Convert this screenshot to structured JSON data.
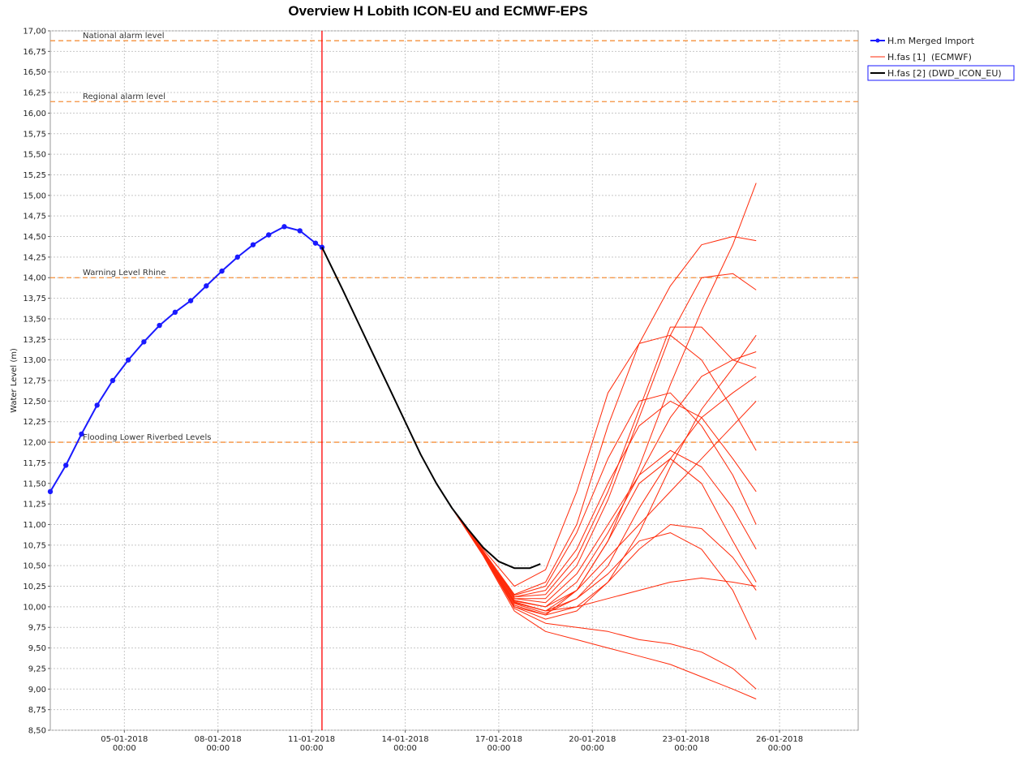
{
  "chart_data": {
    "type": "line",
    "title": "Overview H Lobith ICON-EU and ECMWF-EPS",
    "ylabel": "Water Level (m)",
    "xlim": [
      "2018-01-02T15:00",
      "2018-01-28T12:30"
    ],
    "ylim": [
      8.5,
      17.0
    ],
    "grid": true,
    "legend": "right",
    "xticks": [
      {
        "value": "2018-01-05T00:00",
        "label": "05-01-2018\n00:00"
      },
      {
        "value": "2018-01-08T00:00",
        "label": "08-01-2018\n00:00"
      },
      {
        "value": "2018-01-11T00:00",
        "label": "11-01-2018\n00:00"
      },
      {
        "value": "2018-01-14T00:00",
        "label": "14-01-2018\n00:00"
      },
      {
        "value": "2018-01-17T00:00",
        "label": "17-01-2018\n00:00"
      },
      {
        "value": "2018-01-20T00:00",
        "label": "20-01-2018\n00:00"
      },
      {
        "value": "2018-01-23T00:00",
        "label": "23-01-2018\n00:00"
      },
      {
        "value": "2018-01-26T00:00",
        "label": "26-01-2018\n00:00"
      }
    ],
    "yticks": [
      {
        "value": 8.5,
        "label": "8,50"
      },
      {
        "value": 8.75,
        "label": "8,75"
      },
      {
        "value": 9.0,
        "label": "9,00"
      },
      {
        "value": 9.25,
        "label": "9,25"
      },
      {
        "value": 9.5,
        "label": "9,50"
      },
      {
        "value": 9.75,
        "label": "9,75"
      },
      {
        "value": 10.0,
        "label": "10,00"
      },
      {
        "value": 10.25,
        "label": "10,25"
      },
      {
        "value": 10.5,
        "label": "10,50"
      },
      {
        "value": 10.75,
        "label": "10,75"
      },
      {
        "value": 11.0,
        "label": "11,00"
      },
      {
        "value": 11.25,
        "label": "11,25"
      },
      {
        "value": 11.5,
        "label": "11,50"
      },
      {
        "value": 11.75,
        "label": "11,75"
      },
      {
        "value": 12.0,
        "label": "12,00"
      },
      {
        "value": 12.25,
        "label": "12,25"
      },
      {
        "value": 12.5,
        "label": "12,50"
      },
      {
        "value": 12.75,
        "label": "12,75"
      },
      {
        "value": 13.0,
        "label": "13,00"
      },
      {
        "value": 13.25,
        "label": "13,25"
      },
      {
        "value": 13.5,
        "label": "13,50"
      },
      {
        "value": 13.75,
        "label": "13,75"
      },
      {
        "value": 14.0,
        "label": "14,00"
      },
      {
        "value": 14.25,
        "label": "14,25"
      },
      {
        "value": 14.5,
        "label": "14,50"
      },
      {
        "value": 14.75,
        "label": "14,75"
      },
      {
        "value": 15.0,
        "label": "15,00"
      },
      {
        "value": 15.25,
        "label": "15,25"
      },
      {
        "value": 15.5,
        "label": "15,50"
      },
      {
        "value": 15.75,
        "label": "15,75"
      },
      {
        "value": 16.0,
        "label": "16,00"
      },
      {
        "value": 16.25,
        "label": "16,25"
      },
      {
        "value": 16.5,
        "label": "16,50"
      },
      {
        "value": 16.75,
        "label": "16,75"
      },
      {
        "value": 17.0,
        "label": "17,00"
      }
    ],
    "reference_lines": [
      {
        "label": "National alarm level",
        "value": 16.88,
        "color": "#f5913c"
      },
      {
        "label": "Regional alarm level",
        "value": 16.14,
        "color": "#f5913c"
      },
      {
        "label": "Warning Level Rhine",
        "value": 14.0,
        "color": "#f5913c"
      },
      {
        "label": "Flooding Lower Riverbed Levels",
        "value": 12.0,
        "color": "#f5913c"
      }
    ],
    "time_zero": {
      "value": "2018-01-11T08:00",
      "color": "#ff0000"
    },
    "series": [
      {
        "name": "H.m Merged Import",
        "color": "#1a1aff",
        "markers": true,
        "x": [
          "2018-01-02T15:00",
          "2018-01-03T03:00",
          "2018-01-03T15:00",
          "2018-01-04T03:00",
          "2018-01-04T15:00",
          "2018-01-05T03:00",
          "2018-01-05T15:00",
          "2018-01-06T03:00",
          "2018-01-06T15:00",
          "2018-01-07T03:00",
          "2018-01-07T15:00",
          "2018-01-08T03:00",
          "2018-01-08T15:00",
          "2018-01-09T03:00",
          "2018-01-09T15:00",
          "2018-01-10T03:00",
          "2018-01-10T15:00",
          "2018-01-11T03:00",
          "2018-01-11T08:00"
        ],
        "values": [
          11.4,
          11.72,
          12.1,
          12.45,
          12.75,
          13.0,
          13.22,
          13.42,
          13.58,
          13.72,
          13.9,
          14.08,
          14.25,
          14.4,
          14.52,
          14.62,
          14.57,
          14.42,
          14.37
        ]
      },
      {
        "name": "H.fas [1]  (ECMWF)",
        "color": "#ff2a0a",
        "x": [
          "2018-01-15T12:00",
          "2018-01-16T12:00",
          "2018-01-17T12:00",
          "2018-01-18T12:00",
          "2018-01-19T12:00",
          "2018-01-20T12:00",
          "2018-01-21T12:00",
          "2018-01-22T12:00",
          "2018-01-23T12:00",
          "2018-01-24T12:00",
          "2018-01-25T06:00"
        ],
        "members": [
          [
            11.2,
            10.7,
            10.25,
            10.45,
            11.4,
            12.6,
            13.2,
            13.3,
            13.0,
            12.4,
            11.9
          ],
          [
            11.2,
            10.68,
            10.15,
            10.3,
            11.0,
            12.2,
            13.2,
            13.9,
            14.4,
            14.5,
            14.45
          ],
          [
            11.2,
            10.66,
            10.1,
            10.1,
            10.5,
            11.3,
            12.3,
            13.3,
            14.0,
            14.05,
            13.85
          ],
          [
            11.2,
            10.65,
            10.05,
            9.95,
            10.2,
            10.8,
            11.7,
            12.7,
            13.6,
            14.4,
            15.15
          ],
          [
            11.2,
            10.64,
            10.0,
            9.85,
            9.95,
            10.3,
            10.9,
            11.7,
            12.4,
            12.9,
            13.3
          ],
          [
            11.2,
            10.62,
            9.95,
            9.7,
            9.6,
            9.5,
            9.4,
            9.3,
            9.15,
            9.0,
            8.88
          ],
          [
            11.2,
            10.63,
            9.98,
            9.8,
            9.75,
            9.7,
            9.6,
            9.55,
            9.45,
            9.25,
            9.0
          ],
          [
            11.2,
            10.64,
            10.05,
            9.95,
            10.0,
            10.1,
            10.2,
            10.3,
            10.35,
            10.3,
            10.25
          ],
          [
            11.2,
            10.66,
            10.1,
            10.05,
            10.4,
            11.0,
            11.6,
            11.9,
            11.7,
            11.2,
            10.7
          ],
          [
            11.2,
            10.67,
            10.12,
            10.2,
            10.7,
            11.5,
            12.2,
            12.5,
            12.3,
            11.8,
            11.4
          ],
          [
            11.2,
            10.65,
            10.08,
            10.0,
            10.3,
            10.9,
            11.6,
            12.3,
            12.8,
            13.0,
            13.1
          ],
          [
            11.2,
            10.64,
            10.02,
            9.9,
            10.0,
            10.3,
            10.7,
            11.0,
            10.95,
            10.6,
            10.2
          ],
          [
            11.2,
            10.66,
            10.12,
            10.15,
            10.6,
            11.4,
            12.4,
            13.4,
            13.4,
            13.0,
            12.9
          ],
          [
            11.2,
            10.65,
            10.06,
            9.95,
            10.1,
            10.5,
            11.2,
            11.8,
            12.3,
            12.6,
            12.8
          ],
          [
            11.2,
            10.63,
            10.0,
            9.9,
            10.2,
            10.8,
            11.5,
            11.8,
            11.5,
            10.8,
            10.3
          ],
          [
            11.2,
            10.64,
            10.04,
            9.92,
            10.1,
            10.4,
            10.8,
            10.9,
            10.7,
            10.2,
            9.6
          ],
          [
            11.2,
            10.66,
            10.14,
            10.25,
            10.9,
            11.8,
            12.5,
            12.6,
            12.2,
            11.6,
            11.0
          ],
          [
            11.2,
            10.65,
            10.07,
            10.0,
            10.2,
            10.6,
            11.0,
            11.4,
            11.8,
            12.2,
            12.5
          ]
        ]
      },
      {
        "name": "H.fas [2] (DWD_ICON_EU)",
        "color": "#000000",
        "x": [
          "2018-01-11T08:00",
          "2018-01-12T00:00",
          "2018-01-12T12:00",
          "2018-01-13T00:00",
          "2018-01-13T12:00",
          "2018-01-14T00:00",
          "2018-01-14T12:00",
          "2018-01-15T00:00",
          "2018-01-15T12:00",
          "2018-01-16T00:00",
          "2018-01-16T12:00",
          "2018-01-17T00:00",
          "2018-01-17T12:00",
          "2018-01-18T00:00",
          "2018-01-18T08:00"
        ],
        "values": [
          14.37,
          13.85,
          13.45,
          13.05,
          12.65,
          12.25,
          11.85,
          11.5,
          11.2,
          10.95,
          10.72,
          10.55,
          10.47,
          10.47,
          10.52
        ]
      }
    ]
  }
}
